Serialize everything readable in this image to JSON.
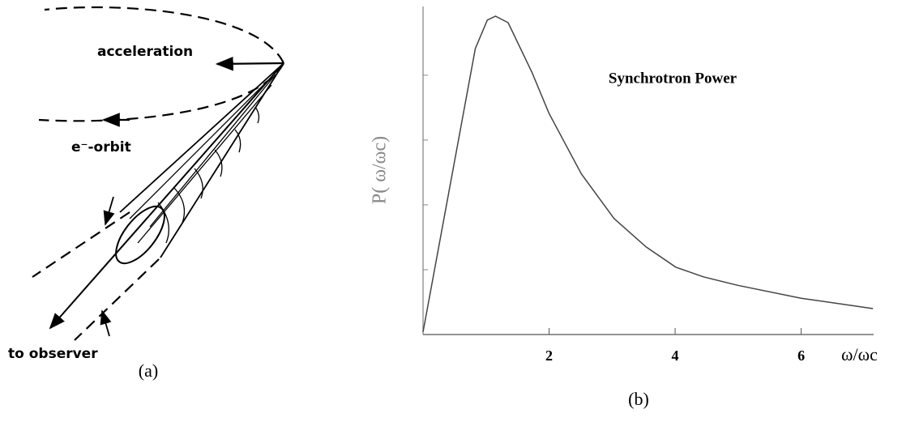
{
  "diagram": {
    "labels": {
      "acceleration": "acceleration",
      "orbit": "e⁻-orbit",
      "observer": "to observer"
    },
    "caption": "(a)"
  },
  "chart_data": {
    "type": "line",
    "title": "Synchrotron Power",
    "x": [
      0,
      0.57,
      0.83,
      1.02,
      1.15,
      1.35,
      1.73,
      2.0,
      2.51,
      3.03,
      3.54,
      4.01,
      4.45,
      4.99,
      6.0,
      7.14
    ],
    "values": [
      0.04,
      3.04,
      4.41,
      4.85,
      4.91,
      4.81,
      4.04,
      3.41,
      2.48,
      1.79,
      1.35,
      1.04,
      0.89,
      0.76,
      0.56,
      0.4
    ],
    "color": "#444444",
    "xlim": [
      0,
      7.15
    ],
    "ylim": [
      0,
      5.06
    ],
    "xticks": [
      2,
      4,
      6
    ],
    "yticks": [
      1,
      2,
      3,
      4
    ],
    "xlabel": "ω/ωc",
    "ylabel": "P( ω/ωc)",
    "caption": "(b)"
  }
}
